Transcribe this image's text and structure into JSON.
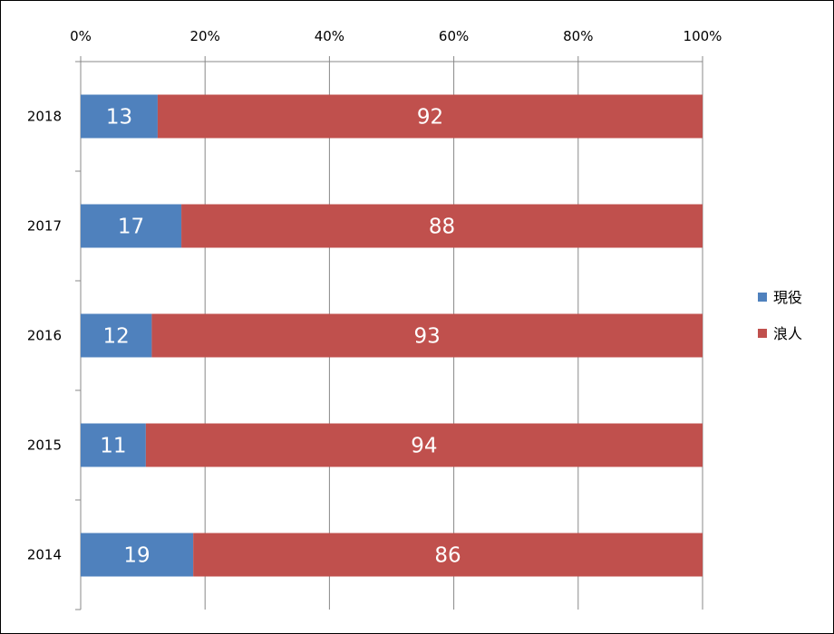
{
  "chart_data": {
    "type": "bar",
    "orientation": "horizontal",
    "stacked": "percent",
    "categories": [
      "2018",
      "2017",
      "2016",
      "2015",
      "2014"
    ],
    "series": [
      {
        "name": "現役",
        "values": [
          13,
          17,
          12,
          11,
          19
        ],
        "color": "#4F81BD"
      },
      {
        "name": "浪人",
        "values": [
          92,
          88,
          93,
          94,
          86
        ],
        "color": "#C0504D"
      }
    ],
    "x_ticks": [
      "0%",
      "20%",
      "40%",
      "60%",
      "80%",
      "100%"
    ],
    "xlim": [
      0,
      100
    ],
    "x_axis_position": "top",
    "grid": true,
    "legend_position": "right",
    "title": "",
    "xlabel": "",
    "ylabel": ""
  }
}
